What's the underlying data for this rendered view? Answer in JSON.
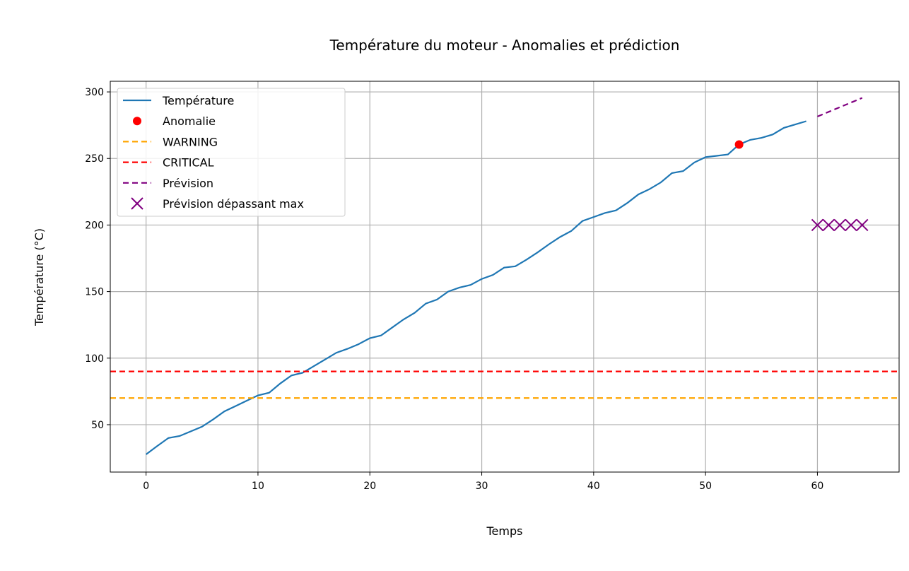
{
  "chart_data": {
    "type": "line",
    "title": "Température du moteur - Anomalies et prédiction",
    "xlabel": "Temps",
    "ylabel": "Température (°C)",
    "xlim": [
      -3.2,
      67.3
    ],
    "ylim": [
      14.4,
      308
    ],
    "xticks": [
      0,
      10,
      20,
      30,
      40,
      50,
      60
    ],
    "yticks": [
      50,
      100,
      150,
      200,
      250,
      300
    ],
    "grid": true,
    "legend_position": "top-left",
    "series": [
      {
        "name": "Température",
        "kind": "line",
        "color": "#1f77b4",
        "x": [
          0,
          1,
          2,
          3,
          4,
          5,
          6,
          7,
          8,
          9,
          10,
          11,
          12,
          13,
          14,
          15,
          16,
          17,
          18,
          19,
          20,
          21,
          22,
          23,
          24,
          25,
          26,
          27,
          28,
          29,
          30,
          31,
          32,
          33,
          34,
          35,
          36,
          37,
          38,
          39,
          40,
          41,
          42,
          43,
          44,
          45,
          46,
          47,
          48,
          49,
          50,
          51,
          52,
          53,
          54,
          55,
          56,
          57,
          58,
          59
        ],
        "y": [
          27.7,
          34,
          40,
          41.5,
          45,
          48.5,
          54,
          60,
          64,
          68,
          72,
          74,
          81,
          87,
          89,
          94,
          99,
          104,
          107,
          110.5,
          115,
          117,
          123,
          129,
          134,
          141,
          144,
          150,
          153,
          155,
          159.5,
          162.5,
          168,
          169,
          174,
          179.5,
          185.5,
          191,
          195.5,
          203,
          206,
          209,
          211,
          216.5,
          223,
          227,
          232,
          239,
          240.5,
          247,
          251,
          252,
          253,
          260.5,
          264,
          265.5,
          268,
          273,
          275.5,
          278
        ]
      },
      {
        "name": "Anomalie",
        "kind": "scatter",
        "color": "#ff0000",
        "x": [
          53
        ],
        "y": [
          260.5
        ]
      },
      {
        "name": "WARNING",
        "kind": "hline",
        "color": "#ffa500",
        "y": 70
      },
      {
        "name": "CRITICAL",
        "kind": "hline",
        "color": "#ff0000",
        "y": 90
      },
      {
        "name": "Prévision",
        "kind": "dashed-line",
        "color": "#800080",
        "x": [
          60,
          61,
          62,
          63,
          64
        ],
        "y": [
          281.5,
          285,
          288.5,
          292,
          295.5
        ]
      },
      {
        "name": "Prévision dépassant max",
        "kind": "x-marker",
        "color": "#800080",
        "x": [
          60,
          61,
          62,
          63,
          64
        ],
        "y": [
          200,
          200,
          200,
          200,
          200
        ]
      }
    ]
  }
}
